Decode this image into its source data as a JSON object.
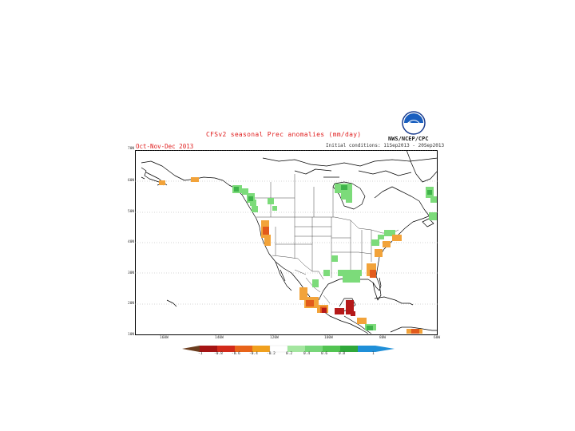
{
  "header": {
    "title": "CFSv2 seasonal Prec anomalies (mm/day)",
    "period": "Oct-Nov-Dec 2013",
    "initial_conditions": "Initial conditions: 11Sep2013 - 20Sep2013",
    "agency": "NWS/NCEP/CPC",
    "logo_icon": "noaa-logo-icon"
  },
  "axes": {
    "y_ticks": [
      "70N",
      "60N",
      "50N",
      "40N",
      "30N",
      "20N",
      "10N"
    ],
    "x_ticks": [
      "160W",
      "140W",
      "120W",
      "100W",
      "80W",
      "60W"
    ]
  },
  "colorbar": {
    "labels": [
      "-1",
      "-0.8",
      "-0.6",
      "-0.4",
      "-0.2",
      "0.2",
      "0.4",
      "0.6",
      "0.8",
      "1"
    ],
    "colors": [
      "#6b3d1e",
      "#a51414",
      "#d22a1a",
      "#e8641a",
      "#f0a01e",
      "#ffffff",
      "#a4e6a0",
      "#78d67a",
      "#52c452",
      "#2fa83a",
      "#1f8fd8"
    ]
  },
  "colors": {
    "land_outline": "#000000",
    "gridline": "#999999",
    "title": "#e02020"
  }
}
